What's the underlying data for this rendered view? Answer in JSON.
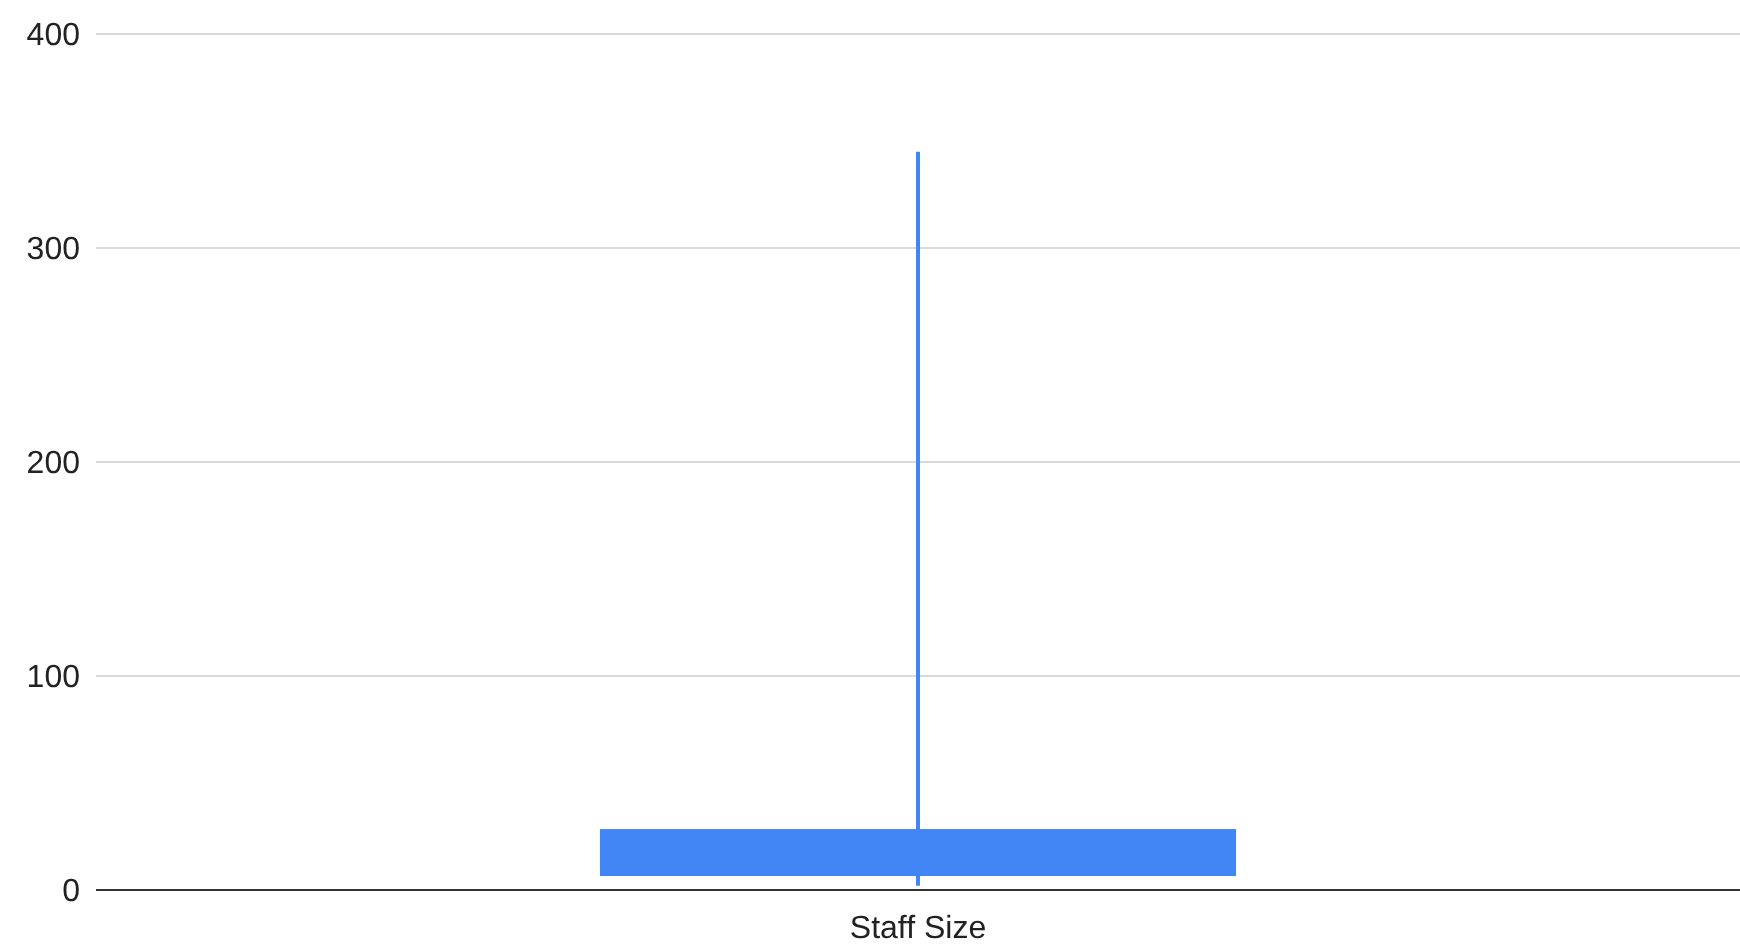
{
  "chart_data": {
    "type": "candlestick",
    "categories": [
      "Staff Size"
    ],
    "ohlc": [
      [
        28,
        345,
        2,
        7
      ]
    ],
    "color": "#4285f4",
    "ylim": [
      0,
      400
    ],
    "yticks": [
      0,
      100,
      200,
      300,
      400
    ],
    "grid": "y"
  }
}
